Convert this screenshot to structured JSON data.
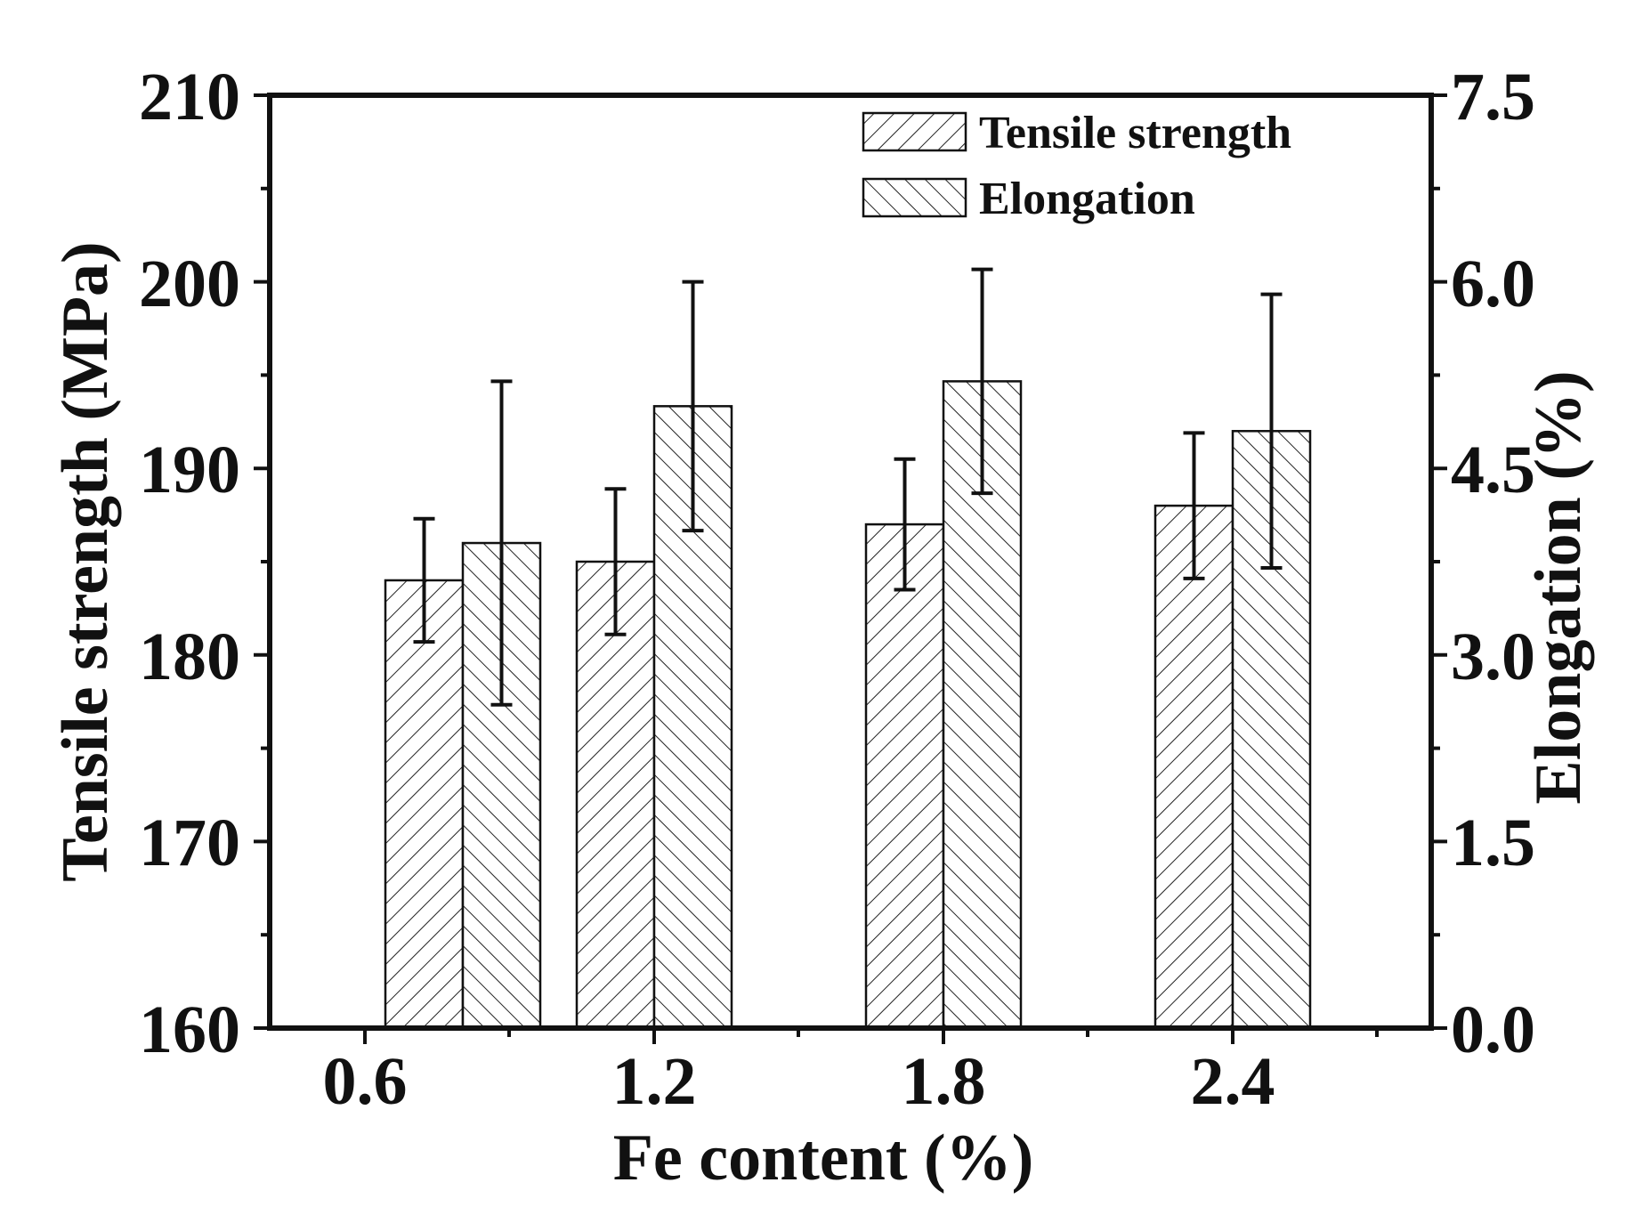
{
  "chart_data": {
    "type": "bar",
    "xlabel": "Fe content (%)",
    "ylabel_left": "Tensile strength (MPa)",
    "ylabel_right": "Elongation (%)",
    "categories": [
      "0.6",
      "1.2",
      "1.8",
      "2.4"
    ],
    "ylim_left": [
      160,
      210
    ],
    "ylim_right": [
      0.0,
      7.5
    ],
    "yticks_left": [
      "160",
      "170",
      "180",
      "190",
      "200",
      "210"
    ],
    "yticks_right": [
      "0.0",
      "1.5",
      "3.0",
      "4.5",
      "6.0",
      "7.5"
    ],
    "series": [
      {
        "name": "Tensile strength",
        "axis": "left",
        "hatch": "forward-diagonal",
        "values": [
          184,
          185,
          187,
          188
        ],
        "error": [
          3.3,
          3.9,
          3.5,
          3.9
        ]
      },
      {
        "name": "Elongation",
        "axis": "right",
        "hatch": "backward-diagonal",
        "values": [
          3.9,
          5.0,
          5.2,
          4.8
        ],
        "error": [
          1.3,
          1.0,
          0.9,
          1.1
        ]
      }
    ],
    "legend": {
      "position": "top-right",
      "items": [
        "Tensile strength",
        "Elongation"
      ]
    },
    "colors": {
      "axis": "#111111",
      "bar_fill": "#ffffff",
      "hatch": "#222222"
    }
  }
}
